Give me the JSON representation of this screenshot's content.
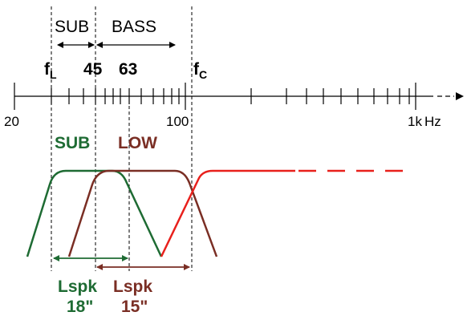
{
  "labels": {
    "sub_band": "SUB",
    "bass_band": "BASS",
    "f_l_main": "f",
    "f_l_sub": "L",
    "f_45": "45",
    "f_63": "63",
    "f_c_main": "f",
    "f_c_sub": "C",
    "tick_20": "20",
    "tick_100": "100",
    "tick_1k": "1k",
    "unit": "Hz",
    "sub_curve": "SUB",
    "low_curve": "LOW",
    "lspk18_line1": "Lspk",
    "lspk18_line2": "18\"",
    "lspk15_line1": "Lspk",
    "lspk15_line2": "15\""
  },
  "colors": {
    "axis": "#000000",
    "sub": "#1e6b33",
    "low": "#7a2e24",
    "high": "#e8201c",
    "guide": "#000000"
  }
}
